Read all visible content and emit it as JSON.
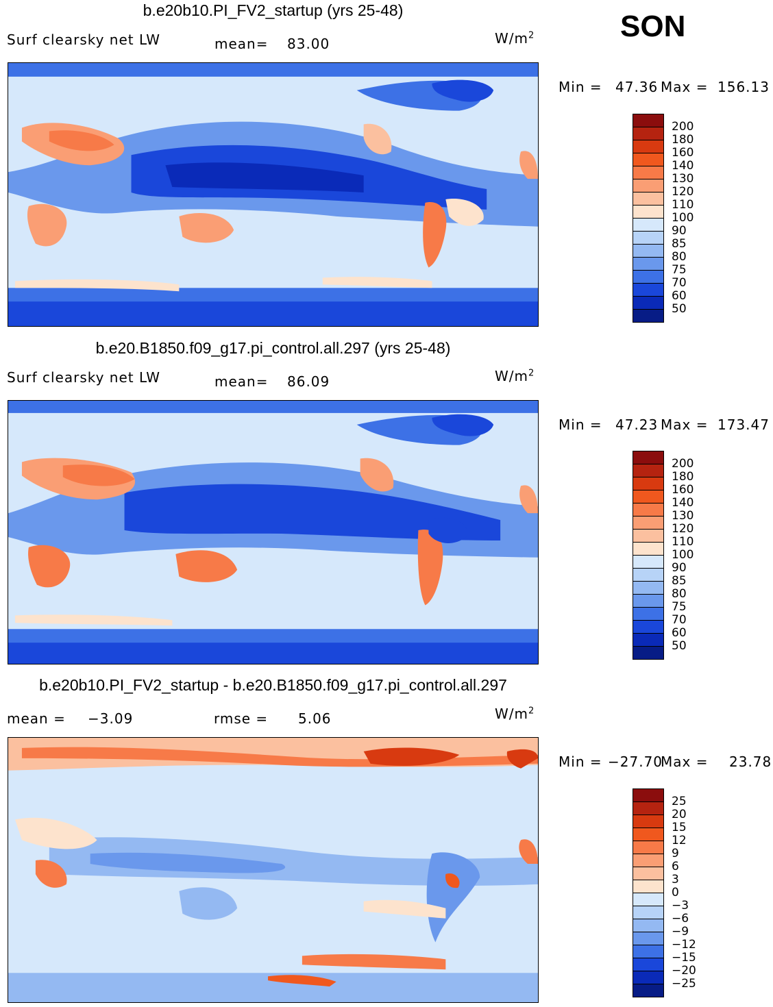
{
  "season": "SON",
  "units_base": "W/m",
  "units_exp": "2",
  "panels": [
    {
      "title": "b.e20b10.PI_FV2_startup (yrs 25-48)",
      "variable": "Surf clearsky net LW",
      "stat1_label": "mean=",
      "stat1_value": "83.00",
      "stat2_label": "",
      "stat2_value": "",
      "min_label": "Min =",
      "min_value": "47.36",
      "max_label": "Max =",
      "max_value": "156.13",
      "levels": [
        "200",
        "180",
        "160",
        "140",
        "130",
        "120",
        "110",
        "100",
        "90",
        "85",
        "80",
        "75",
        "70",
        "60",
        "50"
      ],
      "colors": [
        "#8b0d0d",
        "#b52310",
        "#d83a10",
        "#f0581e",
        "#f77a48",
        "#fa9e74",
        "#fbc09f",
        "#fde3cd",
        "#d6e8fb",
        "#b7d3f7",
        "#94b9f2",
        "#6a98ec",
        "#3d71e6",
        "#1a47da",
        "#0a2ab8",
        "#071c86"
      ]
    },
    {
      "title": "b.e20.B1850.f09_g17.pi_control.all.297 (yrs 25-48)",
      "variable": "Surf clearsky net LW",
      "stat1_label": "mean=",
      "stat1_value": "86.09",
      "stat2_label": "",
      "stat2_value": "",
      "min_label": "Min =",
      "min_value": "47.23",
      "max_label": "Max =",
      "max_value": "173.47",
      "levels": [
        "200",
        "180",
        "160",
        "140",
        "130",
        "120",
        "110",
        "100",
        "90",
        "85",
        "80",
        "75",
        "70",
        "60",
        "50"
      ],
      "colors": [
        "#8b0d0d",
        "#b52310",
        "#d83a10",
        "#f0581e",
        "#f77a48",
        "#fa9e74",
        "#fbc09f",
        "#fde3cd",
        "#d6e8fb",
        "#b7d3f7",
        "#94b9f2",
        "#6a98ec",
        "#3d71e6",
        "#1a47da",
        "#0a2ab8",
        "#071c86"
      ]
    },
    {
      "title": "b.e20b10.PI_FV2_startup - b.e20.B1850.f09_g17.pi_control.all.297",
      "variable": "",
      "stat1_label": "mean =",
      "stat1_value": "−3.09",
      "stat2_label": "rmse =",
      "stat2_value": "5.06",
      "min_label": "Min =",
      "min_value": "−27.70",
      "max_label": "Max =",
      "max_value": "23.78",
      "levels": [
        "25",
        "20",
        "15",
        "12",
        "9",
        "6",
        "3",
        "0",
        "−3",
        "−6",
        "−9",
        "−12",
        "−15",
        "−20",
        "−25"
      ],
      "colors": [
        "#8b0d0d",
        "#b52310",
        "#d83a10",
        "#f0581e",
        "#f77a48",
        "#fa9e74",
        "#fbc09f",
        "#fde3cd",
        "#d6e8fb",
        "#b7d3f7",
        "#94b9f2",
        "#6a98ec",
        "#3d71e6",
        "#1a47da",
        "#0a2ab8",
        "#071c86"
      ]
    }
  ]
}
